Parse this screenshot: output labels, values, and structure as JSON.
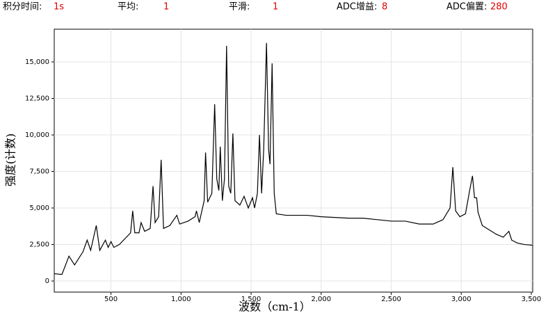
{
  "header": {
    "items": [
      {
        "label": "积分时间:",
        "value": "1s"
      },
      {
        "label": "平均:",
        "value": "1"
      },
      {
        "label": "平滑:",
        "value": "1"
      },
      {
        "label": "ADC增益:",
        "value": "8"
      },
      {
        "label": "ADC偏置:",
        "value": "280"
      }
    ]
  },
  "chart_data": {
    "type": "line",
    "x_label": "波数（cm-1）",
    "y_label": "强度(计数)",
    "xlim": [
      95,
      3510
    ],
    "ylim": [
      -760,
      17240
    ],
    "grid": true,
    "xticks": [
      500,
      {
        "value": 1000,
        "label": "1,000"
      },
      {
        "value": 1500,
        "label": "1,500"
      },
      {
        "value": 2000,
        "label": "2,000"
      },
      {
        "value": 2500,
        "label": "2,500"
      },
      {
        "value": 3000,
        "label": "3,000"
      },
      {
        "value": 3500,
        "label": "3,500"
      }
    ],
    "yticks": [
      0,
      {
        "value": 2500,
        "label": "2,500"
      },
      {
        "value": 5000,
        "label": "5,000"
      },
      {
        "value": 7500,
        "label": "7,500"
      },
      {
        "value": 10000,
        "label": "10,000"
      },
      {
        "value": 12500,
        "label": "12,500"
      },
      {
        "value": 15000,
        "label": "15,000"
      }
    ],
    "x": [
      95,
      150,
      200,
      240,
      300,
      330,
      355,
      395,
      420,
      460,
      480,
      500,
      520,
      560,
      600,
      640,
      655,
      670,
      700,
      715,
      740,
      780,
      800,
      815,
      840,
      858,
      875,
      920,
      970,
      990,
      1050,
      1100,
      1110,
      1130,
      1165,
      1175,
      1190,
      1220,
      1240,
      1255,
      1270,
      1280,
      1295,
      1310,
      1325,
      1340,
      1355,
      1370,
      1385,
      1420,
      1450,
      1480,
      1510,
      1525,
      1545,
      1560,
      1575,
      1590,
      1610,
      1625,
      1635,
      1650,
      1665,
      1680,
      1750,
      1900,
      2000,
      2200,
      2300,
      2400,
      2500,
      2600,
      2700,
      2800,
      2870,
      2920,
      2940,
      2960,
      2990,
      3030,
      3060,
      3080,
      3095,
      3110,
      3120,
      3150,
      3250,
      3300,
      3340,
      3360,
      3400,
      3450,
      3510
    ],
    "series": [
      {
        "color": "#000000",
        "values": [
          500,
          450,
          1700,
          1100,
          2000,
          2800,
          2100,
          3800,
          2100,
          2800,
          2300,
          2700,
          2300,
          2500,
          2900,
          3300,
          4800,
          3300,
          3300,
          4000,
          3400,
          3600,
          6500,
          4000,
          4400,
          8300,
          3600,
          3800,
          4500,
          3900,
          4100,
          4400,
          4800,
          4000,
          5500,
          8800,
          5400,
          6000,
          12100,
          7000,
          6200,
          9200,
          5500,
          7000,
          16100,
          6500,
          6000,
          10100,
          5500,
          5200,
          5800,
          5000,
          5700,
          5000,
          6000,
          10000,
          6000,
          9000,
          16300,
          9000,
          8000,
          14900,
          6000,
          4600,
          4500,
          4500,
          4400,
          4300,
          4300,
          4200,
          4100,
          4100,
          3900,
          3900,
          4200,
          5000,
          7800,
          4800,
          4400,
          4600,
          6200,
          7200,
          5700,
          5700,
          4700,
          3800,
          3200,
          3000,
          3400,
          2800,
          2600,
          2500,
          2450
        ]
      }
    ]
  }
}
